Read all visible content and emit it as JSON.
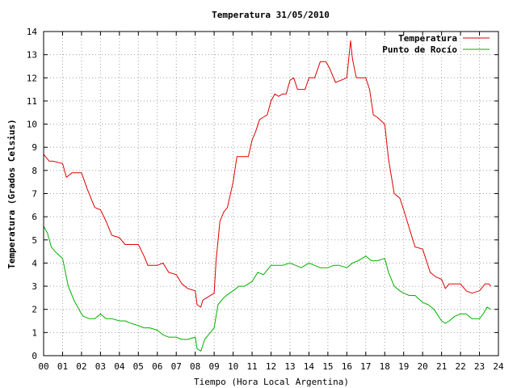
{
  "chart_data": {
    "type": "line",
    "title": "Temperatura 31/05/2010",
    "xlabel": "Tiempo (Hora Local Argentina)",
    "ylabel": "Temperatura (Grados Celsius)",
    "xlim": [
      0,
      24
    ],
    "ylim": [
      0,
      14
    ],
    "x_tick_labels": [
      "00",
      "01",
      "02",
      "03",
      "04",
      "05",
      "06",
      "07",
      "08",
      "09",
      "10",
      "11",
      "12",
      "13",
      "14",
      "15",
      "16",
      "17",
      "18",
      "19",
      "20",
      "21",
      "22",
      "23",
      "24"
    ],
    "y_ticks": [
      0,
      1,
      2,
      3,
      4,
      5,
      6,
      7,
      8,
      9,
      10,
      11,
      12,
      13,
      14
    ],
    "grid": true,
    "legend_position": "top-right",
    "series": [
      {
        "name": "Temperatura",
        "color": "#e00000",
        "x": [
          0,
          0.1,
          0.3,
          0.5,
          1.0,
          1.2,
          1.5,
          2.0,
          2.3,
          2.7,
          3.0,
          3.3,
          3.6,
          4.0,
          4.3,
          4.6,
          5.0,
          5.3,
          5.5,
          6.0,
          6.3,
          6.6,
          7.0,
          7.3,
          7.6,
          8.0,
          8.1,
          8.3,
          8.4,
          8.6,
          9.0,
          9.1,
          9.3,
          9.5,
          9.7,
          10.0,
          10.2,
          10.5,
          10.8,
          11.0,
          11.2,
          11.4,
          11.6,
          11.8,
          12.0,
          12.2,
          12.4,
          12.6,
          12.8,
          13.0,
          13.2,
          13.4,
          13.6,
          13.8,
          14.0,
          14.3,
          14.6,
          14.9,
          15.1,
          15.4,
          15.7,
          16.0,
          16.2,
          16.3,
          16.5,
          16.6,
          17.0,
          17.2,
          17.4,
          17.6,
          18.0,
          18.2,
          18.5,
          18.8,
          19.0,
          19.3,
          19.6,
          20.0,
          20.4,
          20.7,
          21.0,
          21.2,
          21.4,
          22.0,
          22.3,
          22.6,
          23.0,
          23.3,
          23.5,
          23.6
        ],
        "y": [
          8.7,
          8.6,
          8.4,
          8.4,
          8.3,
          7.7,
          7.9,
          7.9,
          7.2,
          6.4,
          6.3,
          5.8,
          5.2,
          5.1,
          4.8,
          4.8,
          4.8,
          4.3,
          3.9,
          3.9,
          4.0,
          3.6,
          3.5,
          3.1,
          2.9,
          2.8,
          2.2,
          2.1,
          2.4,
          2.5,
          2.7,
          4.1,
          5.8,
          6.2,
          6.4,
          7.5,
          8.6,
          8.6,
          8.6,
          9.3,
          9.7,
          10.2,
          10.3,
          10.4,
          11.0,
          11.3,
          11.2,
          11.3,
          11.3,
          11.9,
          12.0,
          11.5,
          11.5,
          11.5,
          12.0,
          12.0,
          12.7,
          12.7,
          12.4,
          11.8,
          11.9,
          12.0,
          13.6,
          12.8,
          12.0,
          12.0,
          12.0,
          11.5,
          10.4,
          10.3,
          10.0,
          8.5,
          7.0,
          6.8,
          6.3,
          5.5,
          4.7,
          4.6,
          3.6,
          3.4,
          3.3,
          2.9,
          3.1,
          3.1,
          2.8,
          2.7,
          2.8,
          3.1,
          3.1,
          3.0
        ]
      },
      {
        "name": "Punto de Rocío",
        "color": "#00b000",
        "x": [
          0,
          0.2,
          0.4,
          0.6,
          1.0,
          1.3,
          1.6,
          2.0,
          2.1,
          2.4,
          2.7,
          3.0,
          3.3,
          3.6,
          4.0,
          4.3,
          4.6,
          5.0,
          5.3,
          5.6,
          6.0,
          6.3,
          6.6,
          7.0,
          7.3,
          7.6,
          8.0,
          8.1,
          8.3,
          8.5,
          8.7,
          9.0,
          9.2,
          9.5,
          9.8,
          10.0,
          10.3,
          10.6,
          11.0,
          11.3,
          11.6,
          12.0,
          12.3,
          12.6,
          13.0,
          13.3,
          13.6,
          14.0,
          14.3,
          14.6,
          15.0,
          15.3,
          15.6,
          16.0,
          16.3,
          16.6,
          17.0,
          17.3,
          17.6,
          18.0,
          18.2,
          18.5,
          18.8,
          19.0,
          19.3,
          19.6,
          20.0,
          20.3,
          20.6,
          21.0,
          21.2,
          21.4,
          21.7,
          22.0,
          22.3,
          22.6,
          23.0,
          23.2,
          23.4,
          23.6
        ],
        "y": [
          5.6,
          5.3,
          4.7,
          4.5,
          4.2,
          3.0,
          2.4,
          1.8,
          1.7,
          1.6,
          1.6,
          1.8,
          1.6,
          1.6,
          1.5,
          1.5,
          1.4,
          1.3,
          1.2,
          1.2,
          1.1,
          0.9,
          0.8,
          0.8,
          0.7,
          0.7,
          0.8,
          0.3,
          0.2,
          0.7,
          0.9,
          1.2,
          2.2,
          2.5,
          2.7,
          2.8,
          3.0,
          3.0,
          3.2,
          3.6,
          3.5,
          3.9,
          3.9,
          3.9,
          4.0,
          3.9,
          3.8,
          4.0,
          3.9,
          3.8,
          3.8,
          3.9,
          3.9,
          3.8,
          4.0,
          4.1,
          4.3,
          4.1,
          4.1,
          4.2,
          3.6,
          3.0,
          2.8,
          2.7,
          2.6,
          2.6,
          2.3,
          2.2,
          2.0,
          1.5,
          1.4,
          1.5,
          1.7,
          1.8,
          1.8,
          1.6,
          1.6,
          1.8,
          2.1,
          2.0
        ]
      }
    ]
  }
}
